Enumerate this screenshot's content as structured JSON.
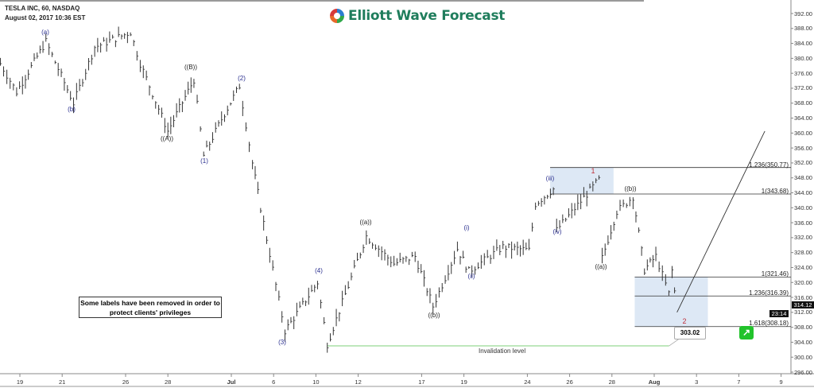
{
  "header": {
    "symbol_line": "TESLA INC, 60, NASDAQ",
    "timestamp": "August 02, 2017 10:36 EST",
    "logo_text": "Elliott Wave Forecast"
  },
  "note": "Some labels have been removed in order to protect clients' privileges",
  "invalidation": {
    "label": "Invalidation level",
    "price": 303.02,
    "price_label": "303.02",
    "start": "Jul 10 13:00",
    "end": "Aug 2 10:00"
  },
  "last_price": "314.12",
  "countdown": "23:14",
  "colors": {
    "bars": "#333333",
    "blue_box": "#dde8f5",
    "invalidation": "#7ccf7a",
    "wave_blue": "#2a2f8f",
    "wave_red": "#c0303a",
    "button": "#22c32b"
  },
  "button_icon": "arrow-up-right-icon",
  "chart_data": {
    "type": "ohlc-bar",
    "title": "TESLA INC, 60, NASDAQ",
    "ylim": [
      294,
      394
    ],
    "yticks": [
      "392.00",
      "388.00",
      "384.00",
      "380.00",
      "376.00",
      "372.00",
      "368.00",
      "364.00",
      "360.00",
      "356.00",
      "352.00",
      "348.00",
      "344.00",
      "340.00",
      "336.00",
      "332.00",
      "328.00",
      "324.00",
      "320.00",
      "316.00",
      "312.00",
      "308.00",
      "304.00",
      "300.00",
      "296.00"
    ],
    "xticks": [
      {
        "label": "19",
        "date": "Jun 19"
      },
      {
        "label": "21",
        "date": "Jun 21"
      },
      {
        "label": "26",
        "date": "Jun 26"
      },
      {
        "label": "28",
        "date": "Jun 28"
      },
      {
        "label": "Jul",
        "date": "Jul 3",
        "bold": true
      },
      {
        "label": "6",
        "date": "Jul 6"
      },
      {
        "label": "10",
        "date": "Jul 10"
      },
      {
        "label": "12",
        "date": "Jul 12"
      },
      {
        "label": "17",
        "date": "Jul 17"
      },
      {
        "label": "19",
        "date": "Jul 19"
      },
      {
        "label": "24",
        "date": "Jul 24"
      },
      {
        "label": "26",
        "date": "Jul 26"
      },
      {
        "label": "28",
        "date": "Jul 28"
      },
      {
        "label": "Aug",
        "date": "Aug 1",
        "bold": true
      },
      {
        "label": "3",
        "date": "Aug 3"
      },
      {
        "label": "7",
        "date": "Aug 7"
      },
      {
        "label": "9",
        "date": "Aug 9"
      }
    ],
    "price_path": [
      [
        "Jun 16 10:00",
        378.6
      ],
      [
        "Jun 16 15:00",
        371
      ],
      [
        "Jun 20 11:00",
        384.5
      ],
      [
        "Jun 21 13:00",
        368
      ],
      [
        "Jun 22 13:00",
        383
      ],
      [
        "Jun 26 11:00",
        387
      ],
      [
        "Jun 26 14:00",
        378.6
      ],
      [
        "Jun 27 16:00",
        360.5
      ],
      [
        "Jun 29 11:00",
        374.3
      ],
      [
        "Jun 29 14:00",
        354
      ],
      [
        "Jun 30 13:00",
        363.7
      ],
      [
        "Jul 3 12:00",
        372.6
      ],
      [
        "Jul 3 16:00",
        352
      ],
      [
        "Jul 5 12:00",
        340
      ],
      [
        "Jul 6 13:00",
        307
      ],
      [
        "Jul 10 10:00",
        320
      ],
      [
        "Jul 10 13:00",
        303.5
      ],
      [
        "Jul 12 12:00",
        332.4
      ],
      [
        "Jul 13 14:00",
        325
      ],
      [
        "Jul 14 14:00",
        327
      ],
      [
        "Jul 17 13:00",
        313.6
      ],
      [
        "Jul 18 14:00",
        329
      ],
      [
        "Jul 19 11:00",
        323
      ],
      [
        "Jul 20 15:00",
        329.5
      ],
      [
        "Jul 24 10:00",
        328.6
      ],
      [
        "Jul 24 12:00",
        341
      ],
      [
        "Jul 25 11:00",
        345
      ],
      [
        "Jul 25 12:00",
        334
      ],
      [
        "Jul 27 12:00",
        347.5
      ],
      [
        "Jul 27 13:00",
        326.5
      ],
      [
        "Jul 28 11:00",
        339
      ],
      [
        "Jul 28 16:00",
        343
      ],
      [
        "Jul 31 13:00",
        323.4
      ],
      [
        "Aug 1 10:00",
        327
      ],
      [
        "Aug 1 14:00",
        317
      ],
      [
        "Aug 1 15:00",
        323.2
      ],
      [
        "Aug 2 10:00",
        312
      ]
    ],
    "projection": [
      [
        "Aug 2 10:00",
        312
      ],
      [
        "Aug 8 11:00",
        360.5
      ]
    ],
    "fib_levels": [
      {
        "label": "1.236(350.77)",
        "price": 350.77,
        "from": "Jul 25 10:00"
      },
      {
        "label": "1(343.68)",
        "price": 343.68,
        "from": "Jul 25 10:00"
      },
      {
        "label": "1(321.46)",
        "price": 321.46,
        "from": "Jul 31 10:00"
      },
      {
        "label": "1.236(316.39)",
        "price": 316.39,
        "from": "Jul 31 10:00"
      },
      {
        "label": "1.618(308.18)",
        "price": 308.18,
        "from": "Jul 31 10:00"
      }
    ],
    "zones": [
      {
        "from": "Jul 25 10:00",
        "to": "Jul 28 10:00",
        "top": 350.77,
        "bottom": 343.68
      },
      {
        "from": "Jul 31 10:00",
        "to": "Aug 3 13:00",
        "top": 321.46,
        "bottom": 308.18
      }
    ],
    "wave_labels": [
      {
        "text": "(a)",
        "style": "blue"
      },
      {
        "text": "(b)",
        "style": "blue"
      },
      {
        "text": "((A))",
        "style": "black"
      },
      {
        "text": "((B))",
        "style": "black"
      },
      {
        "text": "(1)",
        "style": "blue"
      },
      {
        "text": "(2)",
        "style": "blue"
      },
      {
        "text": "(3)",
        "style": "blue"
      },
      {
        "text": "(4)",
        "style": "blue"
      },
      {
        "text": "((a))",
        "style": "black"
      },
      {
        "text": "((b))",
        "style": "black"
      },
      {
        "text": "(i)",
        "style": "blue"
      },
      {
        "text": "(ii)",
        "style": "blue"
      },
      {
        "text": "(iii)",
        "style": "blue"
      },
      {
        "text": "(iv)",
        "style": "blue"
      },
      {
        "text": "1",
        "style": "red"
      },
      {
        "text": "((a))",
        "style": "black"
      },
      {
        "text": "((b))",
        "style": "black"
      },
      {
        "text": "2",
        "style": "red"
      }
    ]
  }
}
